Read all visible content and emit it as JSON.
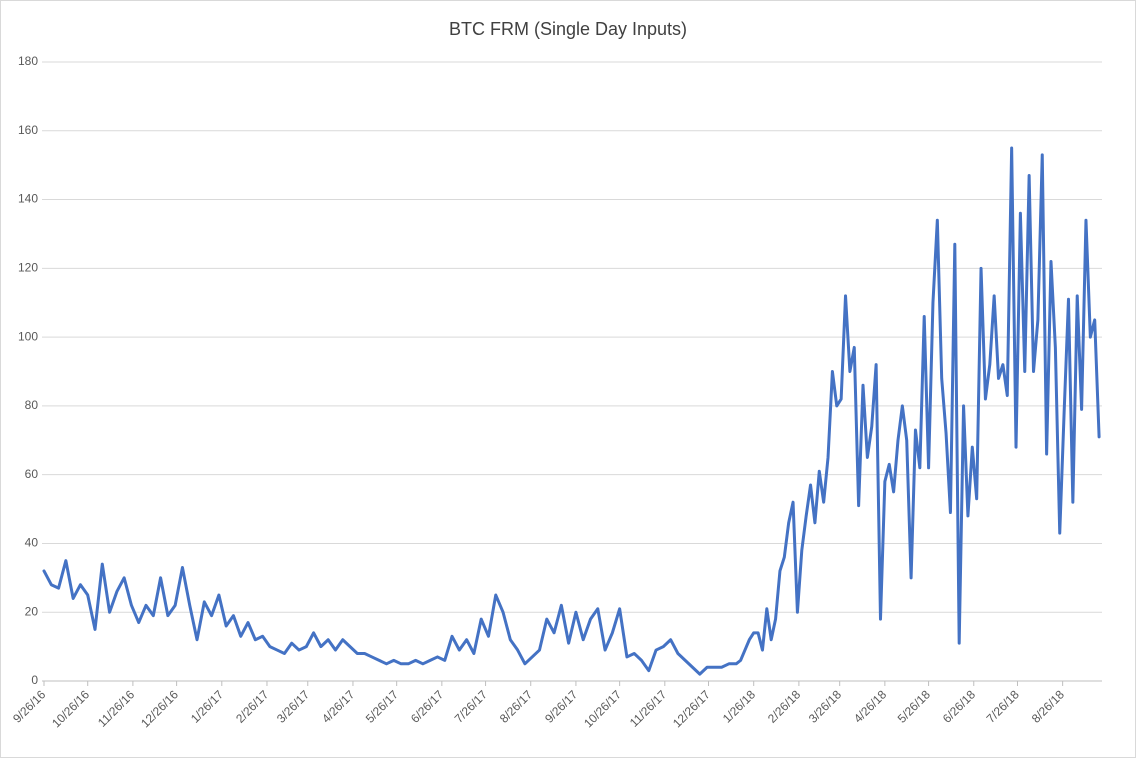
{
  "chart_data": {
    "type": "line",
    "title": "BTC FRM (Single Day Inputs)",
    "color": "#4472c4",
    "grid": true,
    "x": [
      "9/26/16",
      "10/1/16",
      "10/6/16",
      "10/11/16",
      "10/16/16",
      "10/21/16",
      "10/26/16",
      "10/31/16",
      "11/5/16",
      "11/10/16",
      "11/15/16",
      "11/20/16",
      "11/25/16",
      "11/30/16",
      "12/5/16",
      "12/10/16",
      "12/15/16",
      "12/20/16",
      "12/25/16",
      "12/30/16",
      "1/4/17",
      "1/9/17",
      "1/14/17",
      "1/19/17",
      "1/24/17",
      "1/29/17",
      "2/3/17",
      "2/8/17",
      "2/13/17",
      "2/18/17",
      "2/23/17",
      "2/28/17",
      "3/5/17",
      "3/10/17",
      "3/15/17",
      "3/20/17",
      "3/25/17",
      "3/30/17",
      "4/4/17",
      "4/9/17",
      "4/14/17",
      "4/19/17",
      "4/24/17",
      "4/29/17",
      "5/4/17",
      "5/9/17",
      "5/14/17",
      "5/19/17",
      "5/24/17",
      "5/29/17",
      "6/3/17",
      "6/8/17",
      "6/13/17",
      "6/18/17",
      "6/23/17",
      "6/28/17",
      "7/3/17",
      "7/8/17",
      "7/13/17",
      "7/18/17",
      "7/23/17",
      "7/28/17",
      "8/2/17",
      "8/7/17",
      "8/12/17",
      "8/17/17",
      "8/22/17",
      "8/27/17",
      "9/1/17",
      "9/6/17",
      "9/11/17",
      "9/16/17",
      "9/21/17",
      "9/26/17",
      "10/1/17",
      "10/6/17",
      "10/11/17",
      "10/16/17",
      "10/21/17",
      "10/26/17",
      "10/31/17",
      "11/5/17",
      "11/10/17",
      "11/15/17",
      "11/20/17",
      "11/25/17",
      "11/30/17",
      "12/5/17",
      "12/10/17",
      "12/15/17",
      "12/20/17",
      "12/25/17",
      "12/30/17",
      "1/4/18",
      "1/9/18",
      "1/14/18",
      "1/17/18",
      "1/20/18",
      "1/23/18",
      "1/26/18",
      "1/29/18",
      "2/1/18",
      "2/4/18",
      "2/7/18",
      "2/10/18",
      "2/13/18",
      "2/16/18",
      "2/19/18",
      "2/22/18",
      "2/25/18",
      "2/28/18",
      "3/3/18",
      "3/6/18",
      "3/9/18",
      "3/12/18",
      "3/15/18",
      "3/18/18",
      "3/21/18",
      "3/24/18",
      "3/27/18",
      "3/30/18",
      "4/2/18",
      "4/5/18",
      "4/8/18",
      "4/11/18",
      "4/14/18",
      "4/17/18",
      "4/20/18",
      "4/23/18",
      "4/26/18",
      "4/29/18",
      "5/2/18",
      "5/5/18",
      "5/8/18",
      "5/11/18",
      "5/14/18",
      "5/17/18",
      "5/20/18",
      "5/23/18",
      "5/26/18",
      "5/29/18",
      "6/1/18",
      "6/4/18",
      "6/7/18",
      "6/10/18",
      "6/13/18",
      "6/16/18",
      "6/19/18",
      "6/22/18",
      "6/25/18",
      "6/28/18",
      "7/1/18",
      "7/4/18",
      "7/7/18",
      "7/10/18",
      "7/13/18",
      "7/16/18",
      "7/19/18",
      "7/22/18",
      "7/25/18",
      "7/28/18",
      "7/31/18",
      "8/3/18",
      "8/6/18",
      "8/9/18",
      "8/12/18",
      "8/15/18",
      "8/18/18",
      "8/21/18",
      "8/24/18",
      "8/27/18",
      "8/30/18",
      "9/2/18",
      "9/5/18",
      "9/8/18",
      "9/11/18",
      "9/14/18",
      "9/17/18",
      "9/20/18"
    ],
    "values": [
      32,
      28,
      27,
      35,
      24,
      28,
      25,
      15,
      34,
      20,
      26,
      30,
      22,
      17,
      22,
      19,
      30,
      19,
      22,
      33,
      22,
      12,
      23,
      19,
      25,
      16,
      19,
      13,
      17,
      12,
      13,
      10,
      9,
      8,
      11,
      9,
      10,
      14,
      10,
      12,
      9,
      12,
      10,
      8,
      8,
      7,
      6,
      5,
      6,
      5,
      5,
      6,
      5,
      6,
      7,
      6,
      13,
      9,
      12,
      8,
      18,
      13,
      25,
      20,
      12,
      9,
      5,
      7,
      9,
      18,
      14,
      22,
      11,
      20,
      12,
      18,
      21,
      9,
      14,
      21,
      7,
      8,
      6,
      3,
      9,
      10,
      12,
      8,
      6,
      4,
      2,
      4,
      4,
      4,
      5,
      5,
      6,
      9,
      12,
      14,
      14,
      9,
      21,
      12,
      18,
      32,
      36,
      46,
      52,
      20,
      38,
      48,
      57,
      46,
      61,
      52,
      65,
      90,
      80,
      82,
      112,
      90,
      97,
      51,
      86,
      65,
      74,
      92,
      18,
      58,
      63,
      55,
      70,
      80,
      70,
      30,
      73,
      62,
      106,
      62,
      110,
      134,
      88,
      72,
      49,
      127,
      11,
      80,
      48,
      68,
      53,
      120,
      82,
      92,
      112,
      88,
      92,
      83,
      155,
      68,
      136,
      90,
      147,
      90,
      105,
      153,
      66,
      122,
      97,
      43,
      78,
      111,
      52,
      112,
      79,
      134,
      100,
      105,
      71
    ],
    "xlim": [
      "9/26/16",
      "9/22/18"
    ],
    "xticks": [
      "9/26/16",
      "10/26/16",
      "11/26/16",
      "12/26/16",
      "1/26/17",
      "2/26/17",
      "3/26/17",
      "4/26/17",
      "5/26/17",
      "6/26/17",
      "7/26/17",
      "8/26/17",
      "9/26/17",
      "10/26/17",
      "11/26/17",
      "12/26/17",
      "1/26/18",
      "2/26/18",
      "3/26/18",
      "4/26/18",
      "5/26/18",
      "6/26/18",
      "7/26/18",
      "8/26/18"
    ],
    "ylim": [
      0,
      180
    ],
    "yticks": [
      0,
      20,
      40,
      60,
      80,
      100,
      120,
      140,
      160,
      180
    ]
  }
}
